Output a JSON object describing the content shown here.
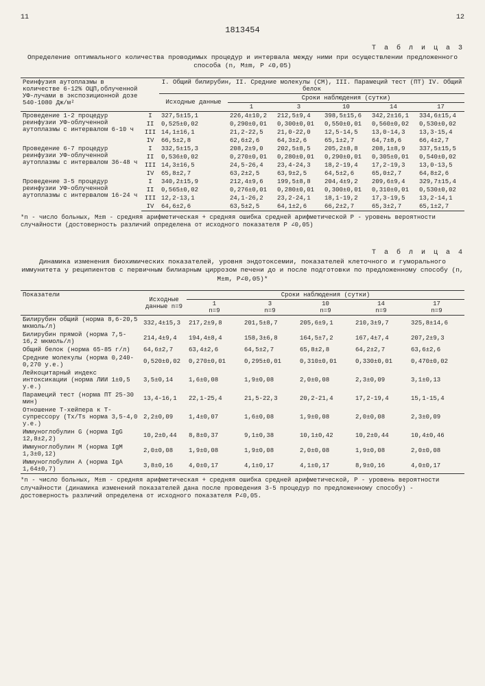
{
  "page_left": "11",
  "doc_number": "1813454",
  "page_right": "12",
  "table3_label": "Т а б л и ц а  3",
  "table3_caption": "Определение оптимального количества проводимых процедур и интервала между ними при осуществлении предложенного способа (n, M±m, P ∠0,05)",
  "table3_left_header": "Реинфузия аутоплазмы в количестве 6-12% ОЦП,облученной УФ-лучами в экспозиционной дозе 540-1080 Дж/м²",
  "table3_top_legend": "I. Общий билирубин, II. Средние молекулы (СМ), III. Парамеций тест (ПТ) IV. Общий белок",
  "table3_col_isx": "Исходные данные",
  "table3_col_sroki": "Сроки наблюдения (сутки)",
  "table3_cols": [
    "1",
    "3",
    "10",
    "14",
    "17"
  ],
  "t3_groups": [
    {
      "label": "Проведение 1-2 процедур реинфузии УФ-облученной аутоплазмы с интервалом 6-10 ч",
      "rows": [
        [
          "I",
          "327,5±15,1",
          "226,4±10,2",
          "212,5±9,4",
          "398,5±15,6",
          "342,2±16,1",
          "334,6±15,4"
        ],
        [
          "II",
          "0,525±0,02",
          "0,290±0,01",
          "0,300±0,01",
          "0,550±0,01",
          "0,560±0,02",
          "0,530±0,02"
        ],
        [
          "III",
          "14,1±16,1",
          "21,2-22,5",
          "21,0-22,0",
          "12,5-14,5",
          "13,0-14,3",
          "13,3-15,4"
        ],
        [
          "IV",
          "66,5±2,8",
          "62,6±2,6",
          "64,3±2,6",
          "65,1±2,7",
          "64,7±8,6",
          "66,4±2,7"
        ]
      ]
    },
    {
      "label": "Проведение 6-7 процедур реинфузии УФ-облученной аутоплазмы с интервалом 36-48 ч",
      "rows": [
        [
          "I",
          "332,5±15,3",
          "208,2±9,0",
          "202,5±8,5",
          "205,2±8,8",
          "208,1±8,9",
          "337,5±15,5"
        ],
        [
          "II",
          "0,536±0,02",
          "0,270±0,01",
          "0,280±0,01",
          "0,290±0,01",
          "0,305±0,01",
          "0,540±0,02"
        ],
        [
          "III",
          "14,3±16,5",
          "24,5-26,4",
          "23,4-24,3",
          "18,2-19,4",
          "17,2-19,3",
          "13,0-13,5"
        ],
        [
          "IV",
          "65,8±2,7",
          "63,2±2,5",
          "63,9±2,5",
          "64,5±2,6",
          "65,0±2,7",
          "64,8±2,6"
        ]
      ]
    },
    {
      "label": "Проведение 3-5 процедур реинфузии УФ-облученной аутоплазмы с интервалом 16-24 ч",
      "rows": [
        [
          "I",
          "340,2±15,9",
          "212,4±9,6",
          "199,5±8,8",
          "204,4±9,2",
          "209,6±9,4",
          "329,7±15,4"
        ],
        [
          "II",
          "0,565±0,02",
          "0,276±0,01",
          "0,280±0,01",
          "0,300±0,01",
          "0,310±0,01",
          "0,530±0,02"
        ],
        [
          "III",
          "12,2-13,1",
          "24,1-26,2",
          "23,2-24,1",
          "18,1-19,2",
          "17,3-19,5",
          "13,2-14,1"
        ],
        [
          "IV",
          "64,6±2,6",
          "63,5±2,5",
          "64,1±2,6",
          "66,2±2,7",
          "65,3±2,7",
          "65,1±2,7"
        ]
      ]
    }
  ],
  "table3_footnote": "*n - число больных, M±m - средняя арифметическая + средняя ошибка средней арифметической\nP - уровень вероятности случайности (достоверность различий определена от исходного показателя P ∠0,05)",
  "table4_label": "Т а б л и ц а  4",
  "table4_caption": "Динамика изменения биохимических показателей, уровня эндотоксемии, показателей клеточного и гуморального иммунитета у реципиентов с первичным билиарным циррозом печени до и после подготовки по предложенному способу (n, M±m, P∠0,05)*",
  "table4_col_pok": "Показатели",
  "table4_col_isx": "Исходные данные n=9",
  "table4_col_sroki": "Сроки наблюдения (сутки)",
  "table4_cols": [
    {
      "d": "1",
      "n": "n=9"
    },
    {
      "d": "3",
      "n": "n=9"
    },
    {
      "d": "10",
      "n": "n=9"
    },
    {
      "d": "14",
      "n": "n=9"
    },
    {
      "d": "17",
      "n": "n=9"
    }
  ],
  "t4_rows": [
    {
      "label": "Билирубин общий (норма 8,6-20,5 мкмоль/л)",
      "v": [
        "332,4±15,3",
        "217,2±9,8",
        "201,5±8,7",
        "205,6±9,1",
        "210,3±9,7",
        "325,8±14,6"
      ]
    },
    {
      "label": "Билирубин прямой (норма 7,5-16,2 мкмоль/л)",
      "v": [
        "214,4±9,4",
        "194,4±8,4",
        "158,3±6,8",
        "164,5±7,2",
        "167,4±7,4",
        "207,2±9,3"
      ]
    },
    {
      "label": "Общий белок (норма 65-85 г/л)",
      "v": [
        "64,6±2,7",
        "63,4±2,6",
        "64,5±2,7",
        "65,8±2,8",
        "64,2±2,7",
        "63,6±2,6"
      ]
    },
    {
      "label": "Средние молекулы (норма 0,240-0,270 у.е.)",
      "v": [
        "0,520±0,02",
        "0,270±0,01",
        "0,295±0,01",
        "0,310±0,01",
        "0,330±0,01",
        "0,470±0,02"
      ]
    },
    {
      "label": "Лейкоцитарный индекс интоксикации (норма ЛИИ 1±0,5 у.е.)",
      "v": [
        "3,5±0,14",
        "1,6±0,08",
        "1,9±0,08",
        "2,0±0,08",
        "2,3±0,09",
        "3,1±0,13"
      ]
    },
    {
      "label": "Парамеций тест (норма ПТ 25-30 мин)",
      "v": [
        "13,4-16,1",
        "22,1-25,4",
        "21,5-22,3",
        "20,2-21,4",
        "17,2-19,4",
        "15,1-15,4"
      ]
    },
    {
      "label": "Отношение T-хейпера к T-супрессору (Tx/Ts норма 3,5-4,0 у.е.)",
      "v": [
        "2,2±0,09",
        "1,4±0,07",
        "1,6±0,08",
        "1,9±0,08",
        "2,0±0,08",
        "2,3±0,09"
      ]
    },
    {
      "label": "Иммуноглобулин G (норма IgG 12,8±2,2)",
      "v": [
        "10,2±0,44",
        "8,8±0,37",
        "9,1±0,38",
        "10,1±0,42",
        "10,2±0,44",
        "10,4±0,46"
      ]
    },
    {
      "label": "Иммуноглобулин M (норма IgM 1,3±0,12)",
      "v": [
        "2,0±0,08",
        "1,9±0,08",
        "1,9±0,08",
        "2,0±0,08",
        "1,9±0,08",
        "2,0±0,08"
      ]
    },
    {
      "label": "Иммуноглобулин A (норма IgA 1,64±0,7)",
      "v": [
        "3,8±0,16",
        "4,0±0,17",
        "4,1±0,17",
        "4,1±0,17",
        "8,9±0,16",
        "4,0±0,17"
      ]
    }
  ],
  "table4_footnote": "*n - число больных, M±m - средняя арифметическая + средняя ошибка средней арифметической,\nP - уровень вероятности случайности (динамика изменений показателей дана после проведения 3-5 процедур по предложенному способу) - достоверность различий определена от исходного показателя P∠0,05."
}
